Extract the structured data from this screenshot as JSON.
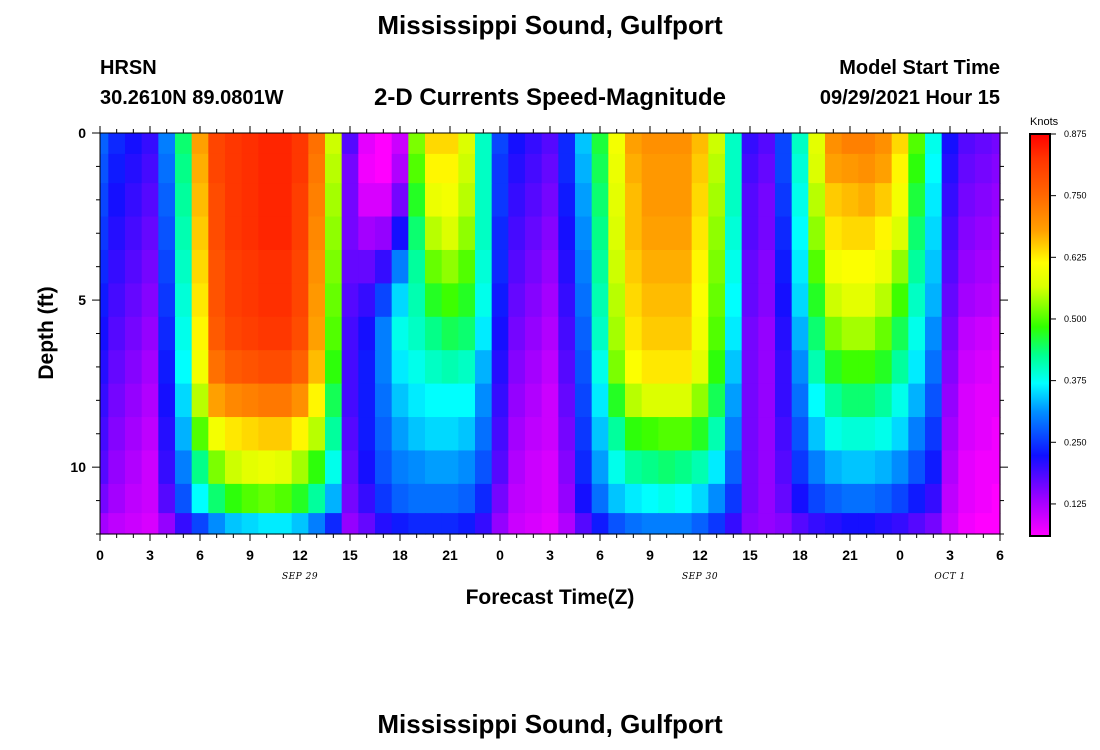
{
  "title": "Mississippi Sound, Gulfport",
  "footer_title": "Mississippi Sound, Gulfport",
  "station": "HRSN",
  "coords": "30.2610N  89.0801W",
  "model_start_label": "Model Start Time",
  "model_start_value": "09/29/2021 Hour 15",
  "chart_data": {
    "type": "heatmap",
    "title": "2-D Currents Speed-Magnitude",
    "xlabel": "Forecast Time(Z)",
    "ylabel": "Depth (ft)",
    "x_tick_labels": [
      "0",
      "3",
      "6",
      "9",
      "12",
      "15",
      "18",
      "21",
      "0",
      "3",
      "6",
      "9",
      "12",
      "15",
      "18",
      "21",
      "0",
      "3",
      "6"
    ],
    "x_hours_from_start": [
      0,
      3,
      6,
      9,
      12,
      15,
      18,
      21,
      24,
      27,
      30,
      33,
      36,
      39,
      42,
      45,
      48,
      51,
      54
    ],
    "date_labels": [
      {
        "label": "SEP 29",
        "at_hour": 12
      },
      {
        "label": "SEP 30",
        "at_hour": 36
      },
      {
        "label": "OCT 1",
        "at_hour": 51
      }
    ],
    "y_ticks": [
      0,
      5,
      10
    ],
    "y_tick_labels": [
      "0",
      "5",
      "10"
    ],
    "ylim": [
      0,
      12
    ],
    "xlim_hours": [
      0,
      54
    ],
    "colorbar": {
      "unit": "Knots",
      "min": 0.06,
      "max": 0.875,
      "tick_values": [
        0.875,
        0.75,
        0.625,
        0.5,
        0.375,
        0.25,
        0.125
      ],
      "tick_labels": [
        "0.875",
        "0.750",
        "0.625",
        "0.500",
        "0.375",
        "0.250",
        "0.125"
      ]
    },
    "depth_bins": [
      0.25,
      1.0,
      2.0,
      3.0,
      4.0,
      5.0,
      6.0,
      7.0,
      8.0,
      9.0,
      10.0,
      11.0,
      11.75
    ],
    "time_hours": [
      0,
      1,
      2,
      3,
      4,
      5,
      6,
      7,
      8,
      9,
      10,
      11,
      12,
      13,
      14,
      15,
      16,
      17,
      18,
      19,
      20,
      21,
      22,
      23,
      24,
      25,
      26,
      27,
      28,
      29,
      30,
      31,
      32,
      33,
      34,
      35,
      36,
      37,
      38,
      39,
      40,
      41,
      42,
      43,
      44,
      45,
      46,
      47,
      48,
      49,
      50,
      51,
      52,
      53,
      54
    ],
    "values": [
      [
        0.28,
        0.24,
        0.22,
        0.2,
        0.3,
        0.44,
        0.68,
        0.8,
        0.82,
        0.83,
        0.84,
        0.84,
        0.82,
        0.74,
        0.56,
        0.18,
        0.08,
        0.06,
        0.1,
        0.52,
        0.64,
        0.64,
        0.57,
        0.4,
        0.26,
        0.22,
        0.2,
        0.18,
        0.24,
        0.34,
        0.46,
        0.6,
        0.68,
        0.7,
        0.7,
        0.7,
        0.66,
        0.56,
        0.4,
        0.2,
        0.18,
        0.26,
        0.4,
        0.58,
        0.7,
        0.72,
        0.72,
        0.7,
        0.64,
        0.5,
        0.38,
        0.22,
        0.18,
        0.17,
        0.16
      ],
      [
        0.27,
        0.23,
        0.21,
        0.19,
        0.29,
        0.43,
        0.67,
        0.8,
        0.82,
        0.83,
        0.84,
        0.84,
        0.82,
        0.73,
        0.55,
        0.16,
        0.07,
        0.05,
        0.12,
        0.5,
        0.62,
        0.62,
        0.56,
        0.4,
        0.25,
        0.21,
        0.19,
        0.17,
        0.24,
        0.33,
        0.45,
        0.59,
        0.67,
        0.69,
        0.69,
        0.69,
        0.65,
        0.55,
        0.4,
        0.19,
        0.17,
        0.26,
        0.39,
        0.57,
        0.68,
        0.69,
        0.7,
        0.68,
        0.62,
        0.48,
        0.37,
        0.21,
        0.17,
        0.16,
        0.15
      ],
      [
        0.26,
        0.22,
        0.2,
        0.18,
        0.28,
        0.42,
        0.66,
        0.79,
        0.82,
        0.83,
        0.84,
        0.84,
        0.81,
        0.72,
        0.54,
        0.16,
        0.09,
        0.09,
        0.16,
        0.47,
        0.59,
        0.6,
        0.55,
        0.4,
        0.25,
        0.2,
        0.18,
        0.16,
        0.23,
        0.32,
        0.44,
        0.58,
        0.66,
        0.69,
        0.69,
        0.69,
        0.64,
        0.54,
        0.4,
        0.18,
        0.16,
        0.25,
        0.38,
        0.55,
        0.65,
        0.66,
        0.67,
        0.65,
        0.6,
        0.46,
        0.36,
        0.2,
        0.16,
        0.15,
        0.14
      ],
      [
        0.25,
        0.21,
        0.19,
        0.17,
        0.27,
        0.41,
        0.65,
        0.79,
        0.82,
        0.83,
        0.84,
        0.84,
        0.81,
        0.71,
        0.53,
        0.16,
        0.13,
        0.14,
        0.22,
        0.44,
        0.55,
        0.57,
        0.53,
        0.4,
        0.24,
        0.19,
        0.17,
        0.15,
        0.22,
        0.31,
        0.43,
        0.57,
        0.66,
        0.68,
        0.68,
        0.68,
        0.63,
        0.53,
        0.39,
        0.18,
        0.16,
        0.24,
        0.37,
        0.53,
        0.63,
        0.64,
        0.64,
        0.62,
        0.57,
        0.44,
        0.35,
        0.19,
        0.15,
        0.14,
        0.13
      ],
      [
        0.24,
        0.2,
        0.18,
        0.16,
        0.26,
        0.4,
        0.64,
        0.78,
        0.81,
        0.82,
        0.83,
        0.83,
        0.8,
        0.7,
        0.52,
        0.17,
        0.17,
        0.2,
        0.3,
        0.42,
        0.51,
        0.53,
        0.5,
        0.39,
        0.24,
        0.18,
        0.16,
        0.14,
        0.21,
        0.3,
        0.42,
        0.56,
        0.65,
        0.67,
        0.67,
        0.67,
        0.62,
        0.52,
        0.38,
        0.17,
        0.15,
        0.23,
        0.36,
        0.5,
        0.6,
        0.61,
        0.61,
        0.59,
        0.53,
        0.42,
        0.34,
        0.18,
        0.14,
        0.13,
        0.12
      ],
      [
        0.23,
        0.19,
        0.17,
        0.15,
        0.25,
        0.39,
        0.63,
        0.78,
        0.81,
        0.82,
        0.83,
        0.83,
        0.8,
        0.69,
        0.51,
        0.18,
        0.2,
        0.26,
        0.35,
        0.41,
        0.47,
        0.49,
        0.47,
        0.38,
        0.23,
        0.17,
        0.15,
        0.13,
        0.2,
        0.29,
        0.41,
        0.55,
        0.64,
        0.66,
        0.66,
        0.66,
        0.61,
        0.51,
        0.37,
        0.17,
        0.15,
        0.22,
        0.35,
        0.47,
        0.56,
        0.58,
        0.58,
        0.55,
        0.49,
        0.4,
        0.33,
        0.17,
        0.13,
        0.12,
        0.11
      ],
      [
        0.22,
        0.18,
        0.16,
        0.14,
        0.24,
        0.38,
        0.62,
        0.77,
        0.8,
        0.81,
        0.82,
        0.82,
        0.79,
        0.68,
        0.5,
        0.19,
        0.22,
        0.3,
        0.38,
        0.4,
        0.43,
        0.45,
        0.44,
        0.36,
        0.22,
        0.16,
        0.14,
        0.12,
        0.19,
        0.28,
        0.4,
        0.54,
        0.63,
        0.65,
        0.65,
        0.65,
        0.6,
        0.5,
        0.36,
        0.16,
        0.14,
        0.21,
        0.33,
        0.44,
        0.52,
        0.54,
        0.54,
        0.51,
        0.45,
        0.38,
        0.31,
        0.16,
        0.11,
        0.1,
        0.09
      ],
      [
        0.21,
        0.17,
        0.15,
        0.13,
        0.23,
        0.37,
        0.6,
        0.74,
        0.77,
        0.78,
        0.79,
        0.79,
        0.76,
        0.66,
        0.48,
        0.19,
        0.23,
        0.3,
        0.36,
        0.38,
        0.4,
        0.41,
        0.4,
        0.33,
        0.21,
        0.15,
        0.13,
        0.11,
        0.18,
        0.27,
        0.38,
        0.52,
        0.61,
        0.63,
        0.63,
        0.63,
        0.58,
        0.48,
        0.34,
        0.16,
        0.14,
        0.2,
        0.31,
        0.41,
        0.47,
        0.49,
        0.49,
        0.47,
        0.42,
        0.36,
        0.29,
        0.15,
        0.1,
        0.09,
        0.08
      ],
      [
        0.2,
        0.16,
        0.14,
        0.12,
        0.22,
        0.35,
        0.55,
        0.68,
        0.71,
        0.72,
        0.73,
        0.73,
        0.7,
        0.62,
        0.45,
        0.19,
        0.23,
        0.29,
        0.34,
        0.36,
        0.37,
        0.37,
        0.37,
        0.31,
        0.2,
        0.14,
        0.12,
        0.1,
        0.17,
        0.26,
        0.36,
        0.47,
        0.55,
        0.57,
        0.57,
        0.57,
        0.53,
        0.45,
        0.32,
        0.16,
        0.14,
        0.2,
        0.29,
        0.37,
        0.42,
        0.44,
        0.44,
        0.42,
        0.38,
        0.33,
        0.27,
        0.14,
        0.09,
        0.08,
        0.08
      ],
      [
        0.19,
        0.15,
        0.13,
        0.11,
        0.21,
        0.33,
        0.5,
        0.6,
        0.63,
        0.64,
        0.65,
        0.65,
        0.62,
        0.55,
        0.42,
        0.18,
        0.23,
        0.28,
        0.32,
        0.34,
        0.35,
        0.35,
        0.34,
        0.29,
        0.19,
        0.13,
        0.11,
        0.1,
        0.16,
        0.25,
        0.34,
        0.42,
        0.48,
        0.49,
        0.5,
        0.5,
        0.47,
        0.41,
        0.3,
        0.16,
        0.14,
        0.19,
        0.27,
        0.34,
        0.38,
        0.39,
        0.39,
        0.38,
        0.35,
        0.3,
        0.25,
        0.13,
        0.09,
        0.08,
        0.07
      ],
      [
        0.18,
        0.14,
        0.12,
        0.1,
        0.2,
        0.3,
        0.43,
        0.52,
        0.56,
        0.58,
        0.59,
        0.58,
        0.54,
        0.48,
        0.38,
        0.17,
        0.22,
        0.27,
        0.3,
        0.31,
        0.32,
        0.32,
        0.31,
        0.27,
        0.18,
        0.12,
        0.1,
        0.09,
        0.15,
        0.24,
        0.32,
        0.38,
        0.42,
        0.43,
        0.44,
        0.43,
        0.41,
        0.36,
        0.28,
        0.16,
        0.14,
        0.18,
        0.25,
        0.3,
        0.33,
        0.34,
        0.34,
        0.33,
        0.31,
        0.27,
        0.23,
        0.12,
        0.08,
        0.07,
        0.07
      ],
      [
        0.16,
        0.13,
        0.11,
        0.1,
        0.18,
        0.27,
        0.37,
        0.44,
        0.48,
        0.5,
        0.51,
        0.5,
        0.47,
        0.42,
        0.33,
        0.16,
        0.2,
        0.25,
        0.28,
        0.29,
        0.29,
        0.29,
        0.28,
        0.24,
        0.16,
        0.11,
        0.1,
        0.09,
        0.14,
        0.22,
        0.29,
        0.34,
        0.36,
        0.37,
        0.38,
        0.37,
        0.35,
        0.31,
        0.25,
        0.16,
        0.14,
        0.17,
        0.22,
        0.26,
        0.28,
        0.29,
        0.29,
        0.28,
        0.26,
        0.23,
        0.2,
        0.11,
        0.08,
        0.07,
        0.06
      ],
      [
        0.13,
        0.11,
        0.1,
        0.09,
        0.14,
        0.2,
        0.26,
        0.31,
        0.34,
        0.35,
        0.36,
        0.36,
        0.34,
        0.3,
        0.24,
        0.14,
        0.17,
        0.21,
        0.23,
        0.24,
        0.24,
        0.24,
        0.23,
        0.2,
        0.14,
        0.1,
        0.09,
        0.08,
        0.12,
        0.18,
        0.23,
        0.27,
        0.29,
        0.3,
        0.3,
        0.3,
        0.28,
        0.25,
        0.2,
        0.15,
        0.14,
        0.15,
        0.18,
        0.2,
        0.21,
        0.22,
        0.22,
        0.21,
        0.2,
        0.18,
        0.16,
        0.1,
        0.07,
        0.06,
        0.06
      ]
    ]
  }
}
